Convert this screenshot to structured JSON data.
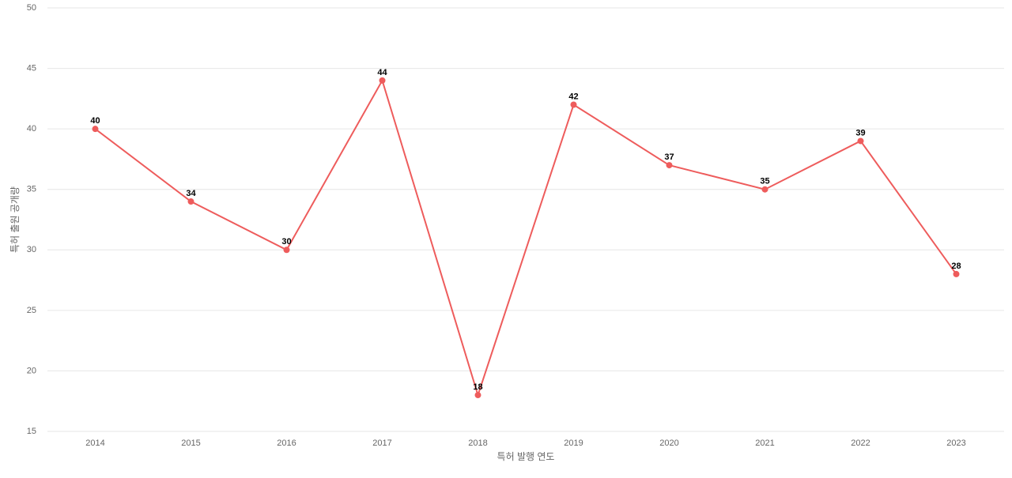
{
  "chart_data": {
    "type": "line",
    "x_label": "특허 발행 연도",
    "y_label": "특허 출원 공개량",
    "categories": [
      "2014",
      "2015",
      "2016",
      "2017",
      "2018",
      "2019",
      "2020",
      "2021",
      "2022",
      "2023"
    ],
    "values": [
      40,
      34,
      30,
      44,
      18,
      42,
      37,
      35,
      39,
      28
    ],
    "color": "#ee5c5c",
    "ylim": [
      15,
      50
    ],
    "yticks": [
      15,
      20,
      25,
      30,
      35,
      40,
      45,
      50
    ],
    "grid": true
  }
}
